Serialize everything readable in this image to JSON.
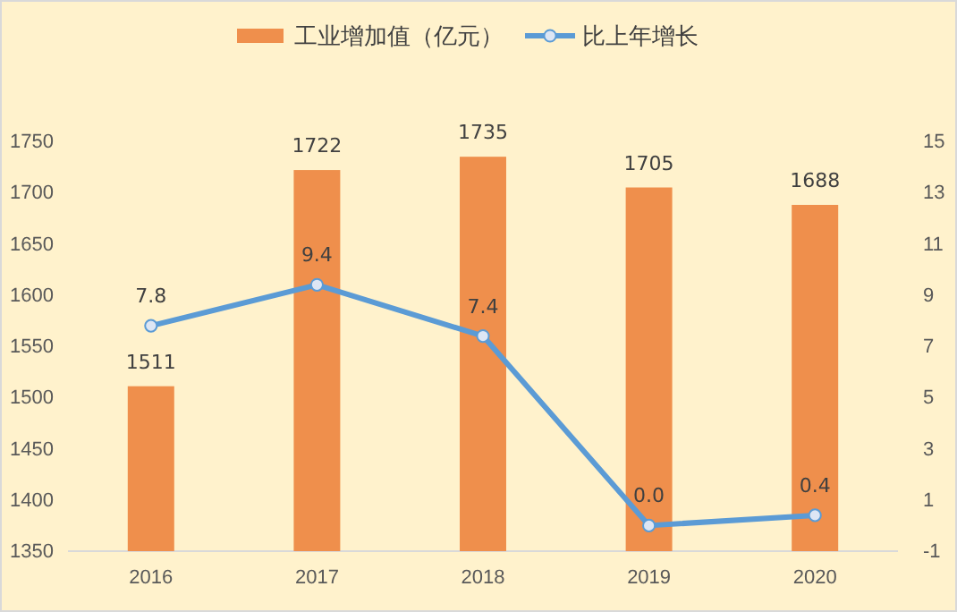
{
  "chart_data": {
    "type": "bar",
    "categories": [
      "2016",
      "2017",
      "2018",
      "2019",
      "2020"
    ],
    "series": [
      {
        "name": "工业增加值（亿元）",
        "color": "#ef8f4c",
        "values": [
          1511,
          1722,
          1735,
          1705,
          1688
        ],
        "value_labels": [
          "1511",
          "1722",
          "1735",
          "1705",
          "1688"
        ]
      },
      {
        "name": "比上年增长",
        "type": "line",
        "axis": "y2",
        "color": "#5b9bd5",
        "values": [
          7.8,
          9.4,
          7.4,
          0.0,
          0.4
        ],
        "value_labels": [
          "7.8",
          "9.4",
          "7.4",
          "0.0",
          "0.4"
        ]
      }
    ],
    "ylim": [
      1350,
      1750
    ],
    "yticks": [
      1350,
      1400,
      1450,
      1500,
      1550,
      1600,
      1650,
      1700,
      1750
    ],
    "y2lim": [
      -1,
      15
    ],
    "y2ticks": [
      -1,
      1,
      3,
      5,
      7,
      9,
      11,
      13,
      15
    ],
    "grid": false,
    "legend": "top",
    "marker": "circle",
    "line_style": "solid"
  }
}
